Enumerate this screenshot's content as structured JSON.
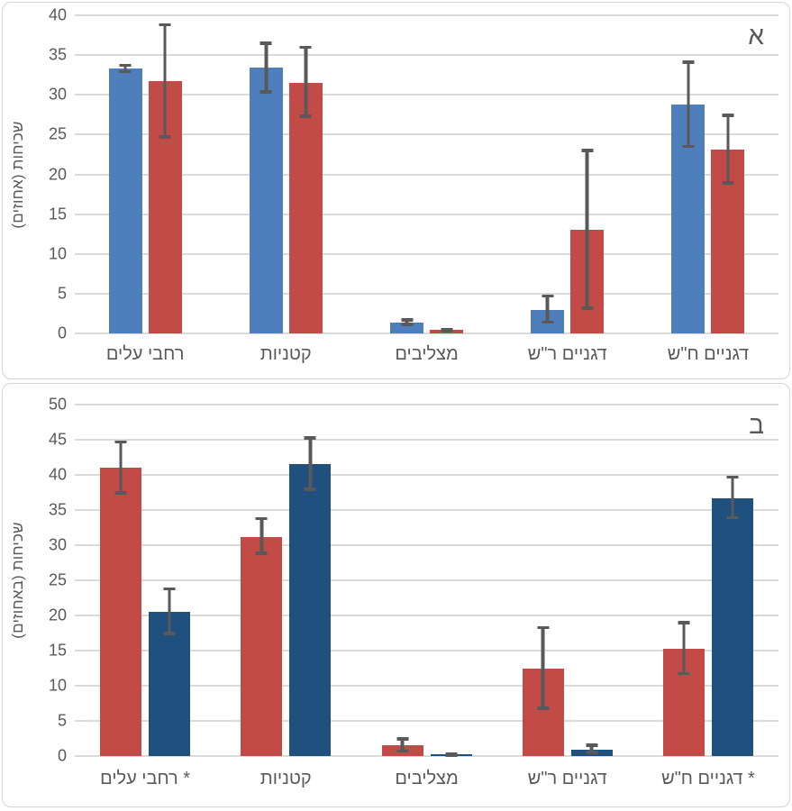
{
  "page": {
    "description_note": "Two stacked bar-chart panels with Hebrew labels and error bars",
    "text_color": "#595959",
    "gridline_color": "#dadada",
    "panel_border_color": "#d6d6d6",
    "background": "#ffffff"
  },
  "chart_data": [
    {
      "type": "bar",
      "panel_label": "א",
      "title": "",
      "xlabel": "",
      "ylabel": "שכיחות (אחוזים)",
      "ylim": [
        0,
        40
      ],
      "ytick_step": 5,
      "grid": true,
      "legend": "none",
      "error_bar_color": "#595959",
      "categories_display_order": "left-to-right",
      "categories": [
        "רחבי עלים",
        "קטניות",
        "מצליבים",
        "דגניים ר\"ש",
        "דגניים ח\"ש"
      ],
      "series": [
        {
          "name": "blue",
          "color": "#4e7ebc",
          "values": [
            33.3,
            33.4,
            1.4,
            3.0,
            28.8
          ],
          "err_high": [
            33.9,
            36.7,
            1.9,
            4.9,
            34.3
          ],
          "err_low": [
            32.7,
            30.2,
            0.9,
            1.2,
            23.3
          ]
        },
        {
          "name": "red",
          "color": "#c24b47",
          "values": [
            31.7,
            31.5,
            0.4,
            13.0,
            23.1
          ],
          "err_high": [
            39.0,
            36.2,
            0.7,
            23.2,
            27.6
          ],
          "err_low": [
            24.5,
            27.1,
            0.1,
            3.0,
            18.7
          ]
        }
      ]
    },
    {
      "type": "bar",
      "panel_label": "ב",
      "title": "",
      "xlabel": "",
      "ylabel": "שכיחות (באחוזים)",
      "ylim": [
        0,
        50
      ],
      "ytick_step": 5,
      "grid": true,
      "legend": "none",
      "error_bar_color": "#595959",
      "categories_display_order": "left-to-right",
      "categories": [
        "* רחבי עלים",
        "קטניות",
        "מצליבים",
        "דגניים ר\"ש",
        "* דגניים ח\"ש"
      ],
      "series": [
        {
          "name": "red",
          "color": "#c24b47",
          "values": [
            41.0,
            31.2,
            1.6,
            12.5,
            15.3
          ],
          "err_high": [
            44.9,
            34.0,
            2.7,
            18.5,
            19.2
          ],
          "err_low": [
            37.2,
            28.6,
            0.5,
            6.6,
            11.5
          ]
        },
        {
          "name": "navy",
          "color": "#20507e",
          "values": [
            20.5,
            41.6,
            0.2,
            0.9,
            36.7
          ],
          "err_high": [
            24.0,
            45.5,
            0.35,
            1.8,
            39.9
          ],
          "err_low": [
            17.2,
            37.7,
            0.1,
            0.3,
            33.7
          ]
        }
      ]
    }
  ]
}
